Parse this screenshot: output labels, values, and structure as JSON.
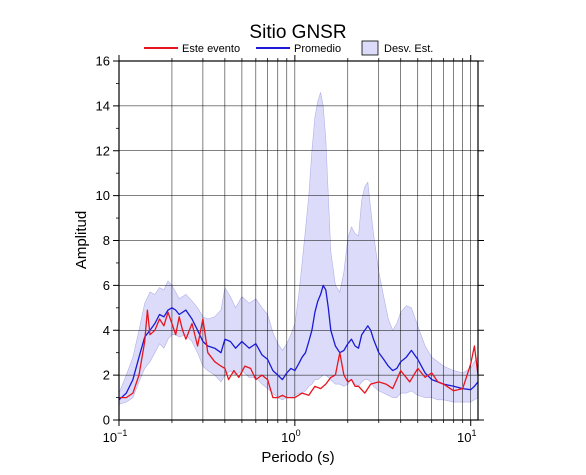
{
  "chart_data": {
    "type": "line",
    "title": "Sitio GNSR",
    "xlabel": "Periodo (s)",
    "ylabel": "Amplitud",
    "xscale": "log",
    "xlim": [
      0.1,
      11
    ],
    "ylim": [
      0,
      16
    ],
    "yticks": [
      0,
      2,
      4,
      6,
      8,
      10,
      12,
      14,
      16
    ],
    "xticks": [
      {
        "value": 0.1,
        "base": "10",
        "exp": "−1"
      },
      {
        "value": 1,
        "label": "10",
        "exp": "0"
      },
      {
        "value": 10,
        "label": "10",
        "exp": "1"
      }
    ],
    "grid": true,
    "legend_position": "top",
    "legend": {
      "este": "Este evento",
      "promedio": "Promedio",
      "desv": "Desv. Est."
    },
    "colors": {
      "este": "#e8141e",
      "promedio": "#1a1ad6",
      "band_fill": "#dcdcfa",
      "band_edge": "#b0b0e6"
    },
    "series": [
      {
        "name": "Promedio",
        "color": "#1a1ad6",
        "x": [
          0.1,
          0.11,
          0.12,
          0.13,
          0.14,
          0.15,
          0.16,
          0.17,
          0.18,
          0.19,
          0.2,
          0.21,
          0.22,
          0.24,
          0.26,
          0.28,
          0.3,
          0.32,
          0.35,
          0.38,
          0.4,
          0.43,
          0.46,
          0.5,
          0.55,
          0.6,
          0.65,
          0.7,
          0.75,
          0.8,
          0.85,
          0.9,
          0.95,
          1.0,
          1.05,
          1.1,
          1.15,
          1.2,
          1.25,
          1.3,
          1.35,
          1.4,
          1.45,
          1.5,
          1.55,
          1.6,
          1.7,
          1.8,
          1.9,
          2.0,
          2.1,
          2.2,
          2.3,
          2.4,
          2.5,
          2.6,
          2.7,
          2.8,
          3.0,
          3.2,
          3.4,
          3.6,
          3.8,
          4.0,
          4.3,
          4.6,
          5.0,
          5.5,
          6.0,
          6.5,
          7.0,
          8.0,
          9.0,
          10.0,
          10.5,
          11.0
        ],
        "y": [
          0.9,
          1.2,
          1.8,
          2.8,
          3.7,
          4.0,
          4.3,
          4.7,
          4.6,
          4.9,
          5.0,
          4.9,
          4.7,
          4.9,
          4.5,
          4.0,
          3.5,
          3.3,
          3.2,
          3.0,
          3.6,
          3.5,
          3.2,
          3.5,
          3.2,
          3.4,
          2.9,
          2.7,
          2.2,
          2.0,
          1.8,
          2.1,
          2.3,
          2.2,
          2.5,
          2.8,
          3.0,
          3.5,
          4.0,
          4.8,
          5.3,
          5.6,
          6.0,
          5.8,
          5.0,
          4.0,
          3.3,
          3.0,
          3.1,
          3.4,
          3.6,
          3.3,
          3.2,
          3.8,
          4.0,
          4.2,
          4.0,
          3.6,
          3.0,
          2.7,
          2.4,
          2.2,
          2.3,
          2.6,
          2.8,
          3.1,
          2.7,
          2.1,
          1.8,
          1.7,
          1.6,
          1.5,
          1.4,
          1.35,
          1.5,
          1.7
        ]
      },
      {
        "name": "Este evento",
        "color": "#e8141e",
        "x": [
          0.1,
          0.11,
          0.12,
          0.13,
          0.14,
          0.145,
          0.15,
          0.16,
          0.17,
          0.18,
          0.19,
          0.2,
          0.21,
          0.22,
          0.23,
          0.24,
          0.26,
          0.28,
          0.3,
          0.32,
          0.35,
          0.38,
          0.4,
          0.42,
          0.45,
          0.48,
          0.52,
          0.56,
          0.6,
          0.65,
          0.7,
          0.75,
          0.8,
          0.85,
          0.9,
          1.0,
          1.1,
          1.2,
          1.3,
          1.4,
          1.5,
          1.6,
          1.7,
          1.8,
          1.9,
          2.0,
          2.1,
          2.2,
          2.3,
          2.5,
          2.7,
          3.0,
          3.3,
          3.6,
          4.0,
          4.5,
          5.0,
          5.5,
          6.0,
          6.5,
          7.0,
          8.0,
          9.0,
          10.0,
          10.5,
          11.0
        ],
        "y": [
          1.0,
          1.0,
          1.2,
          2.0,
          3.5,
          4.9,
          3.8,
          4.0,
          4.5,
          4.2,
          4.8,
          4.3,
          3.8,
          4.6,
          4.0,
          3.6,
          4.3,
          3.3,
          4.5,
          3.0,
          2.6,
          2.4,
          2.3,
          1.8,
          2.2,
          1.9,
          2.4,
          2.3,
          1.8,
          2.0,
          1.8,
          1.0,
          1.0,
          1.1,
          1.0,
          1.0,
          1.2,
          1.1,
          1.5,
          1.4,
          1.6,
          1.9,
          2.0,
          3.0,
          2.0,
          1.7,
          1.8,
          1.5,
          1.5,
          1.2,
          1.6,
          1.7,
          1.6,
          1.4,
          2.2,
          1.7,
          2.3,
          1.9,
          2.1,
          1.7,
          1.6,
          1.3,
          1.4,
          2.5,
          3.3,
          2.0
        ]
      }
    ],
    "band": {
      "name": "Desv. Est.",
      "x": [
        0.1,
        0.11,
        0.12,
        0.13,
        0.14,
        0.15,
        0.16,
        0.17,
        0.18,
        0.19,
        0.2,
        0.21,
        0.22,
        0.24,
        0.26,
        0.28,
        0.3,
        0.32,
        0.35,
        0.38,
        0.4,
        0.43,
        0.46,
        0.5,
        0.55,
        0.6,
        0.65,
        0.7,
        0.75,
        0.8,
        0.85,
        0.9,
        0.95,
        1.0,
        1.05,
        1.1,
        1.15,
        1.2,
        1.25,
        1.3,
        1.35,
        1.4,
        1.45,
        1.5,
        1.55,
        1.6,
        1.7,
        1.8,
        1.9,
        2.0,
        2.1,
        2.2,
        2.3,
        2.4,
        2.5,
        2.6,
        2.7,
        2.8,
        3.0,
        3.2,
        3.4,
        3.6,
        3.8,
        4.0,
        4.3,
        4.6,
        5.0,
        5.5,
        6.0,
        6.5,
        7.0,
        8.0,
        9.0,
        10.0,
        10.5,
        11.0
      ],
      "upper": [
        1.2,
        2.0,
        2.8,
        4.0,
        5.2,
        5.7,
        5.6,
        5.9,
        5.8,
        6.2,
        6.0,
        5.7,
        5.4,
        5.6,
        5.3,
        5.0,
        4.6,
        4.5,
        4.6,
        4.9,
        5.9,
        5.5,
        5.0,
        5.5,
        5.2,
        5.4,
        5.0,
        4.7,
        3.9,
        3.4,
        3.1,
        3.4,
        3.8,
        4.3,
        5.5,
        7.0,
        8.5,
        10.0,
        12.0,
        13.5,
        14.2,
        14.6,
        14.0,
        12.5,
        10.0,
        7.5,
        6.0,
        5.7,
        6.6,
        8.1,
        8.6,
        8.3,
        8.2,
        9.8,
        10.4,
        10.6,
        9.4,
        8.3,
        6.6,
        5.5,
        4.5,
        4.0,
        4.3,
        4.8,
        5.1,
        5.0,
        4.2,
        3.3,
        2.8,
        2.6,
        2.4,
        2.2,
        2.1,
        2.3,
        2.6,
        2.8
      ],
      "lower": [
        0.7,
        0.8,
        1.0,
        1.7,
        2.3,
        2.6,
        3.0,
        3.4,
        3.2,
        3.6,
        3.8,
        3.8,
        3.7,
        3.8,
        3.5,
        3.0,
        2.4,
        2.2,
        2.0,
        1.7,
        2.0,
        2.2,
        2.0,
        2.2,
        1.9,
        1.9,
        1.6,
        1.4,
        1.2,
        1.0,
        0.9,
        1.0,
        1.0,
        1.1,
        1.2,
        1.2,
        1.3,
        1.5,
        1.6,
        1.8,
        1.8,
        1.9,
        2.0,
        2.0,
        1.9,
        1.8,
        1.6,
        1.6,
        1.5,
        1.6,
        1.8,
        1.6,
        1.5,
        1.7,
        1.8,
        1.8,
        1.7,
        1.5,
        1.3,
        1.2,
        1.1,
        1.0,
        1.0,
        1.2,
        1.2,
        1.3,
        1.1,
        1.0,
        1.0,
        0.9,
        0.9,
        0.8,
        0.8,
        0.8,
        0.9,
        1.0
      ]
    }
  }
}
